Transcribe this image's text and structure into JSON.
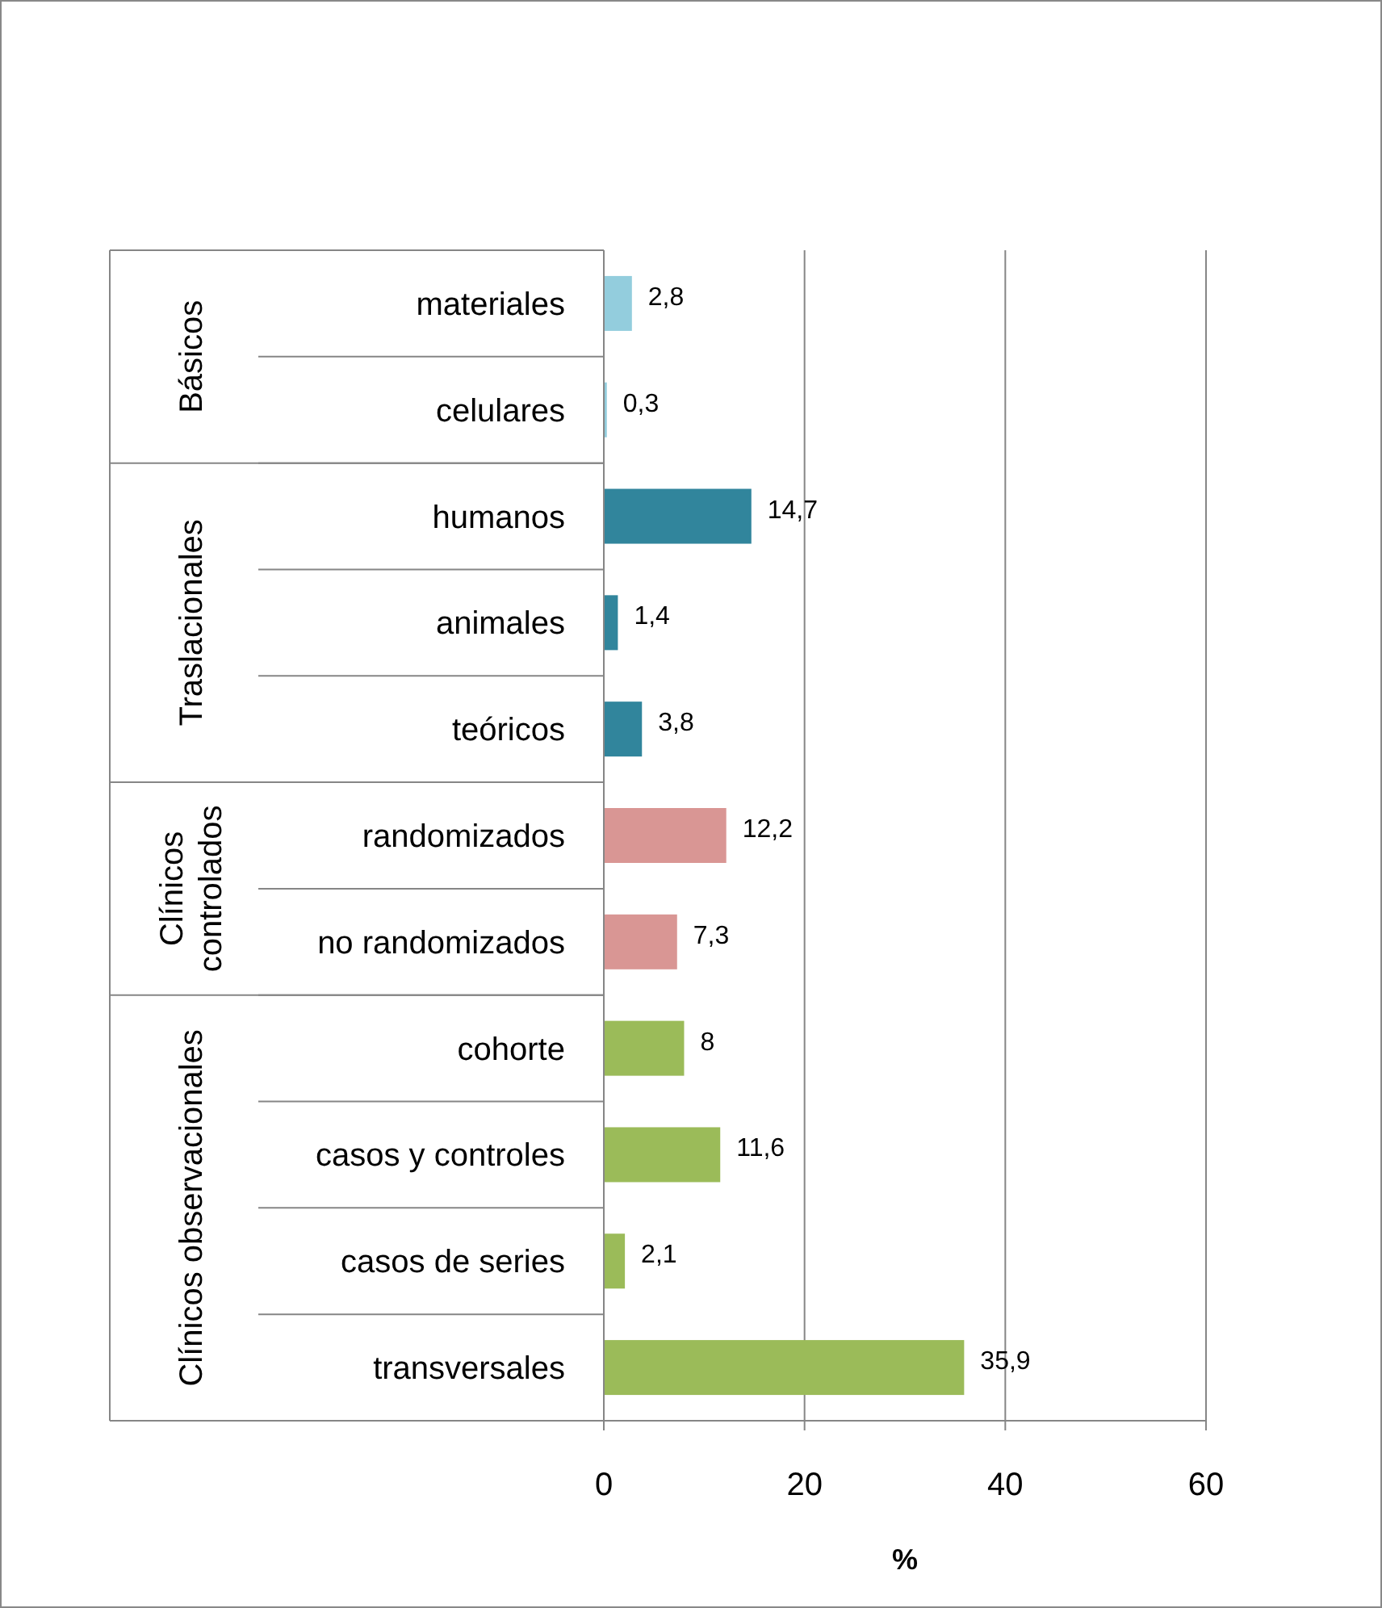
{
  "chart_data": {
    "type": "bar",
    "orientation": "horizontal",
    "categories": [
      "materiales",
      "celulares",
      "humanos",
      "animales",
      "teóricos",
      "randomizados",
      "no randomizados",
      "cohorte",
      "casos y controles",
      "casos de series",
      "transversales"
    ],
    "values": [
      2.8,
      0.3,
      14.7,
      1.4,
      3.8,
      12.2,
      7.3,
      8,
      11.6,
      2.1,
      35.9
    ],
    "colors": [
      "#93cddd",
      "#93cddd",
      "#31859c",
      "#31859c",
      "#31859c",
      "#d99694",
      "#d99694",
      "#9bbb59",
      "#9bbb59",
      "#9bbb59",
      "#9bbb59"
    ],
    "value_labels": [
      "2,8",
      "0,3",
      "14,7",
      "1,4",
      "3,8",
      "12,2",
      "7,3",
      "8",
      "11,6",
      "2,1",
      "35,9"
    ],
    "annotations": [
      "Básicos",
      "Traslacionales",
      "Clínicos controlados",
      "Clínicos observacionales"
    ],
    "xlabel": "%",
    "xlim": [
      0,
      60
    ],
    "xticks": [
      0,
      20,
      40,
      60
    ],
    "grid": "x"
  }
}
